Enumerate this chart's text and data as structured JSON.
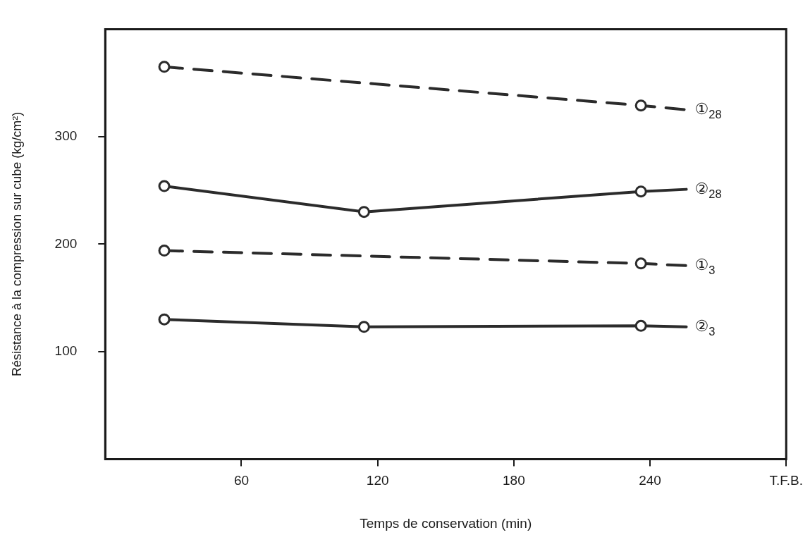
{
  "chart_data": {
    "type": "line",
    "xlabel": "Temps de conservation (min)",
    "ylabel": "Résistance à la compression sur cube (kg/cm²)",
    "xlim": [
      0,
      300
    ],
    "xticks": [
      60,
      120,
      180,
      240,
      {
        "value": 300,
        "label": "T.F.B."
      }
    ],
    "ylim": [
      0,
      400
    ],
    "yticks": [
      100,
      200,
      300
    ],
    "grid": false,
    "legend": false,
    "marker": "circle",
    "series": [
      {
        "name": "①$_{28}$",
        "color": "#2b2b2b",
        "line_style": "dashed",
        "x": [
          26,
          236,
          256
        ],
        "values": [
          365,
          329,
          325
        ]
      },
      {
        "name": "②$_{28}$",
        "color": "#2b2b2b",
        "line_style": "solid",
        "x": [
          26,
          114,
          236,
          256
        ],
        "values": [
          254,
          230,
          249,
          251
        ]
      },
      {
        "name": "①$_{3}$",
        "color": "#2b2b2b",
        "line_style": "dashed",
        "x": [
          26,
          236,
          256
        ],
        "values": [
          194,
          182,
          180
        ]
      },
      {
        "name": "②$_{3}$",
        "color": "#2b2b2b",
        "line_style": "solid",
        "x": [
          26,
          114,
          236,
          256
        ],
        "values": [
          130,
          123,
          124,
          123
        ]
      }
    ]
  }
}
